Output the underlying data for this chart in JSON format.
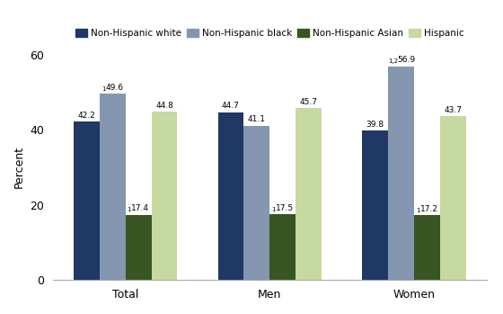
{
  "groups": [
    "Total",
    "Men",
    "Women"
  ],
  "series": {
    "Non-Hispanic white": [
      42.2,
      44.7,
      39.8
    ],
    "Non-Hispanic black": [
      49.6,
      41.1,
      56.9
    ],
    "Non-Hispanic Asian": [
      17.4,
      17.5,
      17.2
    ],
    "Hispanic": [
      44.8,
      45.7,
      43.7
    ]
  },
  "colors": {
    "Non-Hispanic white": "#1f3864",
    "Non-Hispanic black": "#8496b0",
    "Non-Hispanic Asian": "#375623",
    "Hispanic": "#c5d9a0"
  },
  "superscripts": {
    "Non-Hispanic black": [
      "1",
      "",
      "1,2"
    ],
    "Non-Hispanic Asian": [
      "1",
      "1",
      "1"
    ]
  },
  "value_labels": {
    "Non-Hispanic white": [
      "42.2",
      "44.7",
      "39.8"
    ],
    "Non-Hispanic black": [
      "49.6",
      "41.1",
      "56.9"
    ],
    "Non-Hispanic Asian": [
      "17.4",
      "17.5",
      "17.2"
    ],
    "Hispanic": [
      "44.8",
      "45.7",
      "43.7"
    ]
  },
  "ylabel": "Percent",
  "ylim": [
    0,
    60
  ],
  "yticks": [
    0,
    20,
    40,
    60
  ],
  "bar_width": 0.18,
  "legend_order": [
    "Non-Hispanic white",
    "Non-Hispanic black",
    "Non-Hispanic Asian",
    "Hispanic"
  ]
}
